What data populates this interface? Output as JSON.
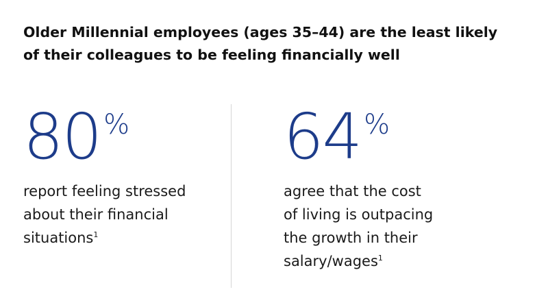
{
  "headline": {
    "line1": "Older Millennial employees (ages 35–44) are the least likely",
    "line2": "of their colleagues to be feeling financially well"
  },
  "stats": [
    {
      "value": "80",
      "unit": "%",
      "lines": [
        "report feeling stressed",
        "about their financial",
        "situations"
      ],
      "footnote": "1"
    },
    {
      "value": "64",
      "unit": "%",
      "lines": [
        "agree that the cost",
        "of living is outpacing",
        "the growth in their",
        "salary/wages"
      ],
      "footnote": "1"
    }
  ],
  "colors": {
    "accent": "#1d3c8a",
    "text": "#1a1a1a",
    "divider": "#d6d6d6"
  }
}
